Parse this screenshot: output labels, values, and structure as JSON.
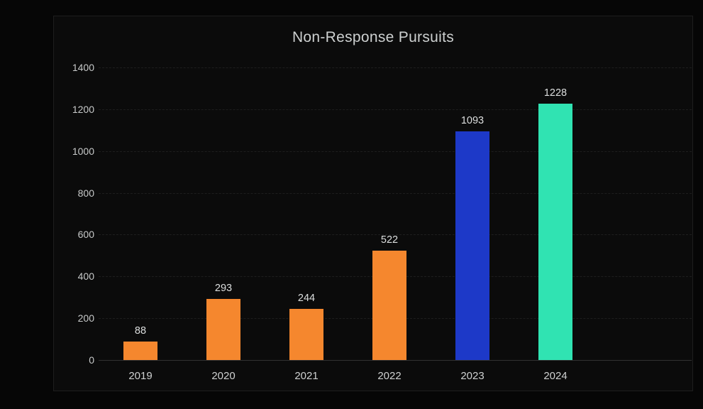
{
  "chart_data": {
    "type": "bar",
    "title": "Non-Response Pursuits",
    "categories": [
      "2019",
      "2020",
      "2021",
      "2022",
      "2023",
      "2024"
    ],
    "values": [
      88,
      293,
      244,
      522,
      1093,
      1228
    ],
    "bar_colors": [
      "#f5872e",
      "#f5872e",
      "#f5872e",
      "#f5872e",
      "#1d39c8",
      "#30e3b2"
    ],
    "data_labels": [
      "88",
      "293",
      "244",
      "522",
      "1093",
      "1228"
    ],
    "xlabel": "",
    "ylabel": "",
    "ylim": [
      0,
      1400
    ],
    "yticks": [
      0,
      200,
      400,
      600,
      800,
      1000,
      1200,
      1400
    ],
    "ytick_labels": [
      "0",
      "200",
      "400",
      "600",
      "800",
      "1000",
      "1200",
      "1400"
    ],
    "grid": "horizontal-dashed",
    "legend": "none",
    "colors": {
      "background": "#0b0b0b",
      "outer_background": "#060606",
      "frame_border": "#1e1e1e",
      "gridline": "#1e1e1e",
      "axis_line": "#323232",
      "title_text": "#cdd0d0",
      "tick_text": "#c7c9c9",
      "value_text": "#dddfdf",
      "orange": "#f5872e",
      "blue": "#1d39c8",
      "teal": "#30e3b2"
    }
  }
}
